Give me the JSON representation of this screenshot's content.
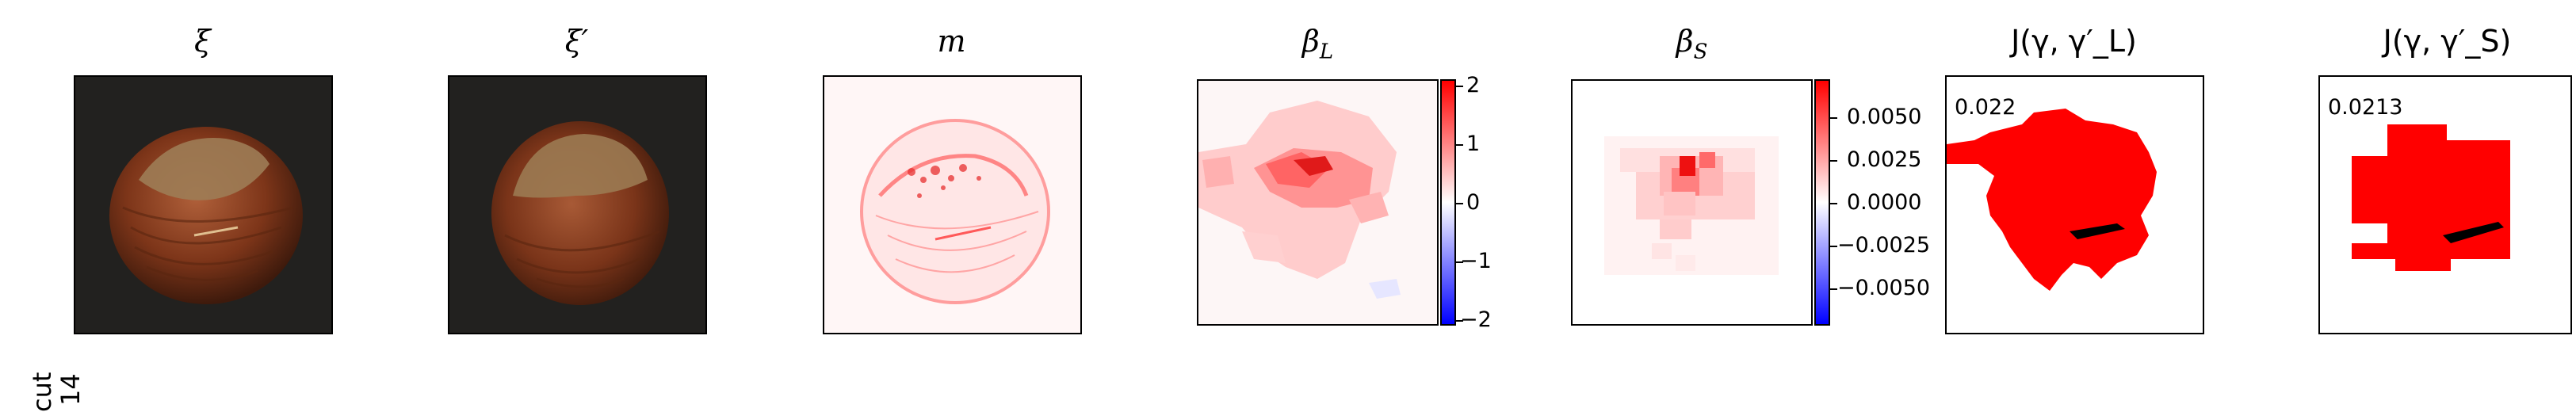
{
  "row": {
    "label_line1": "cut",
    "label_line2": "14"
  },
  "panels": [
    {
      "title": "ξ"
    },
    {
      "title": "ξ′"
    },
    {
      "title": "m"
    },
    {
      "title": "β_L",
      "main": "β",
      "sub": "L"
    },
    {
      "title": "β_S",
      "main": "β",
      "sub": "S"
    },
    {
      "title": "J(γ, γ′_L)",
      "score": "0.022"
    },
    {
      "title": "J(γ, γ′_S)",
      "score": "0.0213"
    }
  ],
  "colorbar_L": {
    "ticks": [
      "2",
      "1",
      "0",
      "−1",
      "−2"
    ]
  },
  "colorbar_S": {
    "ticks": [
      "0.0050",
      "0.0025",
      "0.0000",
      "−0.0025",
      "−0.0050"
    ]
  },
  "colors": {
    "positive": "#ff0000",
    "negative": "#0000ff",
    "neutral": "#ffffff",
    "photo_bg": "#22211f",
    "nut": "#8a3e22"
  }
}
